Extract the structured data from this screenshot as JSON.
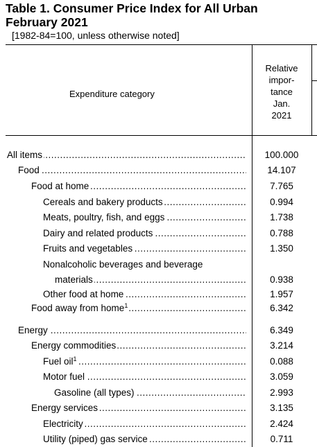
{
  "title": {
    "line1": "Table 1. Consumer Price Index for All Urban",
    "line2": "February 2021"
  },
  "subtitle": "[1982-84=100, unless otherwise noted]",
  "header": {
    "category": "Expenditure category",
    "relative": [
      "Relative",
      "impor-",
      "tance",
      "Jan.",
      "2021"
    ]
  },
  "rows": [
    {
      "label": "All items",
      "value": "100.000",
      "indent": 0
    },
    {
      "label": "Food",
      "value": "14.107",
      "indent": 1
    },
    {
      "label": "Food at home",
      "value": "7.765",
      "indent": 2
    },
    {
      "label": "Cereals and bakery products",
      "value": "0.994",
      "indent": 3
    },
    {
      "label": "Meats, poultry, fish, and eggs",
      "value": "1.738",
      "indent": 3
    },
    {
      "label": "Dairy and related products",
      "value": "0.788",
      "indent": 3
    },
    {
      "label": "Fruits and vegetables",
      "value": "1.350",
      "indent": 3
    },
    {
      "label_line1": "Nonalcoholic beverages and beverage",
      "label": "materials",
      "value": "0.938",
      "indent": 3
    },
    {
      "label": "Other food at home",
      "value": "1.957",
      "indent": 3
    },
    {
      "label": "Food away from home",
      "footnote": "1",
      "value": "6.342",
      "indent": 2
    },
    {
      "label": "Energy",
      "value": "6.349",
      "indent": 1
    },
    {
      "label": "Energy commodities",
      "value": "3.214",
      "indent": 2
    },
    {
      "label": "Fuel oil",
      "footnote": "1",
      "value": "0.088",
      "indent": 3
    },
    {
      "label": "Motor fuel",
      "value": "3.059",
      "indent": 3
    },
    {
      "label": "Gasoline (all types)",
      "value": "2.993",
      "indent": 4
    },
    {
      "label": "Energy services",
      "value": "3.135",
      "indent": 2
    },
    {
      "label": "Electricity",
      "value": "2.424",
      "indent": 3
    },
    {
      "label": "Utility (piped) gas service",
      "value": "0.711",
      "indent": 3
    }
  ]
}
